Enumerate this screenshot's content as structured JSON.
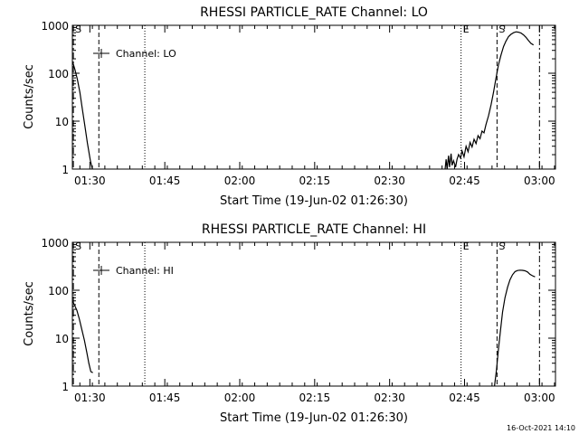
{
  "footer_timestamp": "16-Oct-2021 14:10",
  "chart_data": [
    {
      "type": "line",
      "title": "RHESSI PARTICLE_RATE Channel: LO",
      "xlabel": "Start Time (19-Jun-02 01:26:30)",
      "ylabel": "Counts/sec",
      "legend_label": "Channel: LO",
      "legend_position": "top-left",
      "yscale": "log",
      "ylim": [
        1,
        1000
      ],
      "xlim_minutes": [
        0,
        96.7
      ],
      "yticks": [
        {
          "v": 1,
          "label": "1"
        },
        {
          "v": 10,
          "label": "10"
        },
        {
          "v": 100,
          "label": "100"
        },
        {
          "v": 1000,
          "label": "1000"
        }
      ],
      "xticks": [
        {
          "t": 3.5,
          "label": "01:30"
        },
        {
          "t": 18.5,
          "label": "01:45"
        },
        {
          "t": 33.5,
          "label": "02:00"
        },
        {
          "t": 48.5,
          "label": "02:15"
        },
        {
          "t": 63.5,
          "label": "02:30"
        },
        {
          "t": 78.5,
          "label": "02:45"
        },
        {
          "t": 93.5,
          "label": "03:00"
        }
      ],
      "markers": [
        {
          "t": 0.2,
          "style": "dashdot",
          "label": "S"
        },
        {
          "t": 5.3,
          "style": "dashed",
          "label": ""
        },
        {
          "t": 14.5,
          "style": "dotted",
          "label": ""
        },
        {
          "t": 77.8,
          "style": "dotted",
          "label": "E"
        },
        {
          "t": 85.0,
          "style": "dashed",
          "label": "S"
        },
        {
          "t": 93.5,
          "style": "dashdot",
          "label": ""
        }
      ],
      "series": [
        {
          "name": "Channel: LO",
          "segments": [
            [
              [
                0,
                180
              ],
              [
                0.5,
                120
              ],
              [
                1.0,
                75
              ],
              [
                1.5,
                40
              ],
              [
                2.0,
                18
              ],
              [
                2.5,
                8
              ],
              [
                3.0,
                3.5
              ],
              [
                3.6,
                1.5
              ],
              [
                4.0,
                1.0
              ]
            ],
            [
              [
                74.6,
                1.0
              ],
              [
                74.8,
                1.6
              ],
              [
                75.0,
                1.0
              ],
              [
                75.3,
                1.9
              ],
              [
                75.5,
                1.1
              ],
              [
                75.8,
                2.1
              ],
              [
                76.0,
                1.2
              ],
              [
                76.3,
                1.5
              ],
              [
                76.7,
                1.1
              ],
              [
                77.0,
                1.6
              ],
              [
                77.3,
                2.0
              ],
              [
                77.7,
                1.7
              ],
              [
                78.0,
                2.4
              ],
              [
                78.4,
                1.8
              ],
              [
                78.8,
                3.0
              ],
              [
                79.2,
                2.3
              ],
              [
                79.6,
                3.6
              ],
              [
                80.0,
                2.9
              ],
              [
                80.4,
                4.2
              ],
              [
                80.8,
                3.4
              ],
              [
                81.2,
                5.0
              ],
              [
                81.6,
                4.3
              ],
              [
                82.0,
                6.2
              ],
              [
                82.4,
                5.7
              ],
              [
                82.8,
                8.5
              ],
              [
                83.3,
                13
              ],
              [
                83.8,
                22
              ],
              [
                84.3,
                40
              ],
              [
                84.8,
                80
              ],
              [
                85.3,
                150
              ],
              [
                85.8,
                240
              ],
              [
                86.3,
                360
              ],
              [
                86.8,
                470
              ],
              [
                87.3,
                580
              ],
              [
                87.8,
                650
              ],
              [
                88.3,
                700
              ],
              [
                88.8,
                730
              ],
              [
                89.3,
                720
              ],
              [
                89.8,
                690
              ],
              [
                90.3,
                630
              ],
              [
                90.8,
                560
              ],
              [
                91.3,
                480
              ],
              [
                91.8,
                420
              ],
              [
                92.3,
                390
              ]
            ]
          ]
        }
      ]
    },
    {
      "type": "line",
      "title": "RHESSI PARTICLE_RATE Channel: HI",
      "xlabel": "Start Time (19-Jun-02 01:26:30)",
      "ylabel": "Counts/sec",
      "legend_label": "Channel: HI",
      "legend_position": "top-left",
      "yscale": "log",
      "ylim": [
        1,
        1000
      ],
      "xlim_minutes": [
        0,
        96.7
      ],
      "yticks": [
        {
          "v": 1,
          "label": "1"
        },
        {
          "v": 10,
          "label": "10"
        },
        {
          "v": 100,
          "label": "100"
        },
        {
          "v": 1000,
          "label": "1000"
        }
      ],
      "xticks": [
        {
          "t": 3.5,
          "label": "01:30"
        },
        {
          "t": 18.5,
          "label": "01:45"
        },
        {
          "t": 33.5,
          "label": "02:00"
        },
        {
          "t": 48.5,
          "label": "02:15"
        },
        {
          "t": 63.5,
          "label": "02:30"
        },
        {
          "t": 78.5,
          "label": "02:45"
        },
        {
          "t": 93.5,
          "label": "03:00"
        }
      ],
      "markers": [
        {
          "t": 0.2,
          "style": "dashdot",
          "label": "S"
        },
        {
          "t": 5.3,
          "style": "dashed",
          "label": ""
        },
        {
          "t": 14.5,
          "style": "dotted",
          "label": ""
        },
        {
          "t": 77.8,
          "style": "dotted",
          "label": "E"
        },
        {
          "t": 85.0,
          "style": "dashed",
          "label": "S"
        },
        {
          "t": 93.5,
          "style": "dashdot",
          "label": ""
        }
      ],
      "series": [
        {
          "name": "Channel: HI",
          "segments": [
            [
              [
                0,
                60
              ],
              [
                0.4,
                50
              ],
              [
                0.9,
                38
              ],
              [
                1.4,
                25
              ],
              [
                1.9,
                15
              ],
              [
                2.4,
                9
              ],
              [
                2.9,
                5
              ],
              [
                3.3,
                3
              ],
              [
                3.7,
                2
              ],
              [
                4.1,
                1.9
              ]
            ],
            [
              [
                84.5,
                1.0
              ],
              [
                84.9,
                2.2
              ],
              [
                85.3,
                6
              ],
              [
                85.7,
                15
              ],
              [
                86.1,
                35
              ],
              [
                86.6,
                70
              ],
              [
                87.1,
                115
              ],
              [
                87.6,
                165
              ],
              [
                88.1,
                210
              ],
              [
                88.6,
                245
              ],
              [
                89.1,
                258
              ],
              [
                89.6,
                262
              ],
              [
                90.1,
                260
              ],
              [
                90.6,
                255
              ],
              [
                91.1,
                240
              ],
              [
                91.6,
                215
              ],
              [
                92.1,
                200
              ],
              [
                92.6,
                190
              ]
            ]
          ]
        }
      ]
    }
  ]
}
